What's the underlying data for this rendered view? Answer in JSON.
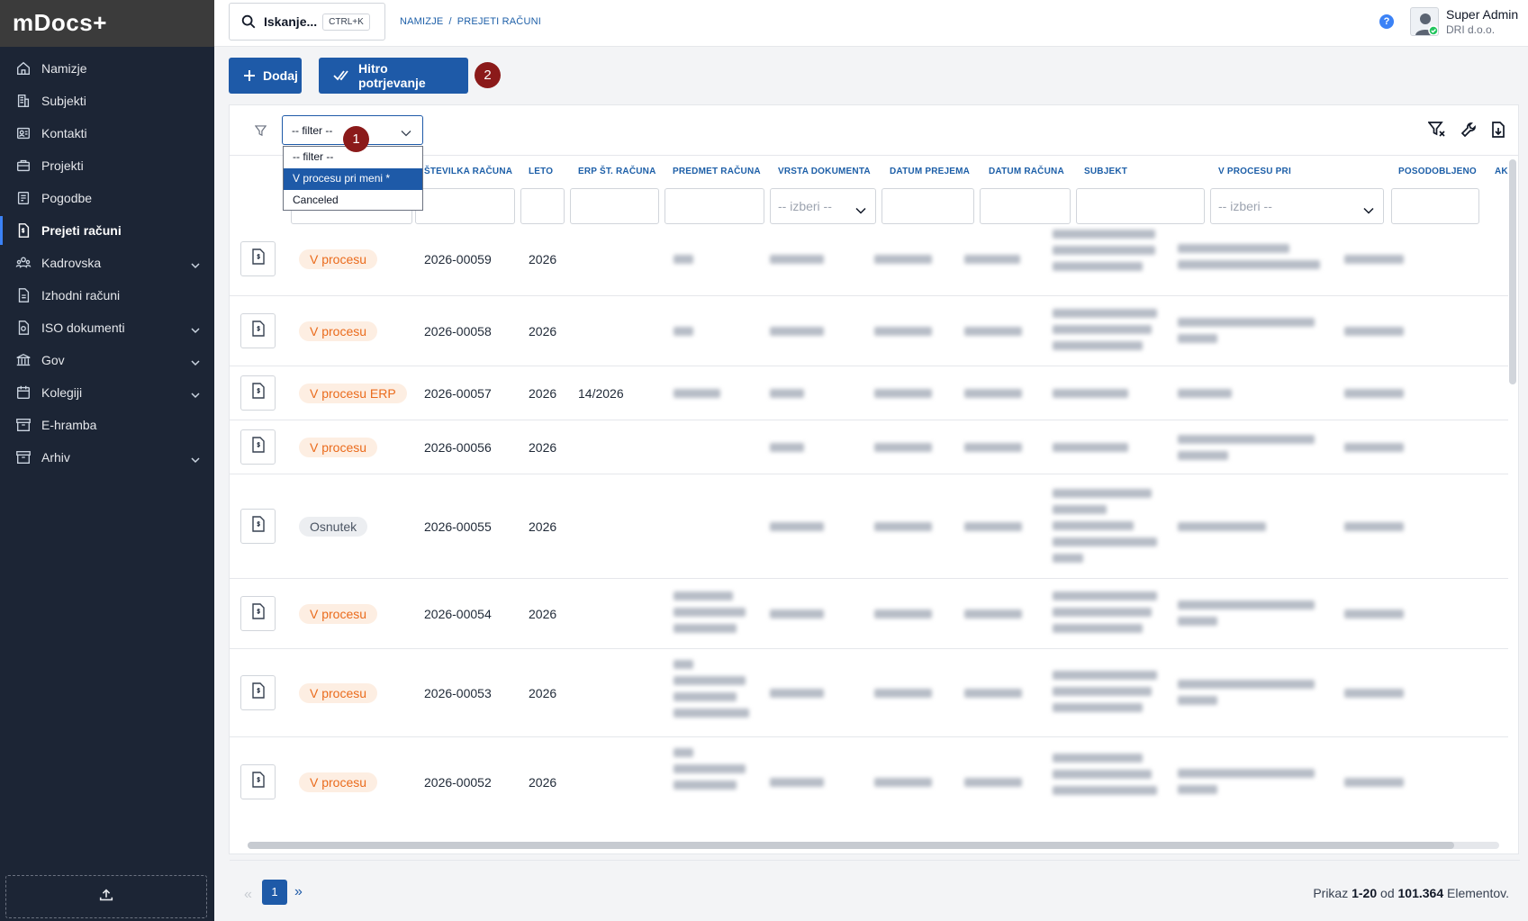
{
  "app": {
    "logo": "mDocs+"
  },
  "sidebar": {
    "items": [
      {
        "label": "Namizje",
        "icon": "home-icon"
      },
      {
        "label": "Subjekti",
        "icon": "building-icon"
      },
      {
        "label": "Kontakti",
        "icon": "contact-card-icon"
      },
      {
        "label": "Projekti",
        "icon": "briefcase-icon"
      },
      {
        "label": "Pogodbe",
        "icon": "contract-icon"
      },
      {
        "label": "Prejeti računi",
        "icon": "invoice-icon",
        "active": true
      },
      {
        "label": "Kadrovska",
        "icon": "people-icon",
        "expandable": true
      },
      {
        "label": "Izhodni računi",
        "icon": "document-icon"
      },
      {
        "label": "ISO dokumenti",
        "icon": "iso-icon",
        "expandable": true
      },
      {
        "label": "Gov",
        "icon": "government-icon",
        "expandable": true
      },
      {
        "label": "Kolegiji",
        "icon": "calendar-icon",
        "expandable": true
      },
      {
        "label": "E-hramba",
        "icon": "archive-icon"
      },
      {
        "label": "Arhiv",
        "icon": "archive-box-icon",
        "expandable": true
      }
    ]
  },
  "header": {
    "search_label": "Iskanje...",
    "search_shortcut": "CTRL+K",
    "breadcrumb": [
      "NAMIZJE",
      "/",
      "PREJETI RAČUNI"
    ],
    "help": "?",
    "user_name": "Super Admin",
    "user_company": "DRI d.o.o."
  },
  "toolbar": {
    "add_label": "Dodaj",
    "quick_label": "Hitro potrjevanje",
    "marker_1": "1",
    "marker_2": "2"
  },
  "filter": {
    "selected": "-- filter --",
    "options": [
      "-- filter --",
      "V procesu pri meni *",
      "Canceled"
    ],
    "highlighted": "V procesu pri meni *"
  },
  "table": {
    "columns": [
      "ŠTEVILKA RAČUNA",
      "LETO",
      "ERP ŠT. RAČUNA",
      "PREDMET RAČUNA",
      "VRSTA DOKUMENTA",
      "DATUM PREJEMA",
      "DATUM RAČUNA",
      "SUBJEKT",
      "V PROCESU PRI",
      "POSODOBLJENO",
      "AK"
    ],
    "select_placeholder": "-- izberi --",
    "rows": [
      {
        "status": "V procesu",
        "tone": "orange",
        "number": "2026-00059",
        "year": "2026",
        "erp": ""
      },
      {
        "status": "V procesu",
        "tone": "orange",
        "number": "2026-00058",
        "year": "2026",
        "erp": ""
      },
      {
        "status": "V procesu ERP",
        "tone": "orange",
        "number": "2026-00057",
        "year": "2026",
        "erp": "14/2026"
      },
      {
        "status": "V procesu",
        "tone": "orange",
        "number": "2026-00056",
        "year": "2026",
        "erp": ""
      },
      {
        "status": "Osnutek",
        "tone": "gray",
        "number": "2026-00055",
        "year": "2026",
        "erp": ""
      },
      {
        "status": "V procesu",
        "tone": "orange",
        "number": "2026-00054",
        "year": "2026",
        "erp": ""
      },
      {
        "status": "V procesu",
        "tone": "orange",
        "number": "2026-00053",
        "year": "2026",
        "erp": ""
      },
      {
        "status": "V procesu",
        "tone": "orange",
        "number": "2026-00052",
        "year": "2026",
        "erp": ""
      }
    ]
  },
  "pagination": {
    "current_page": "1",
    "prefix": "Prikaz",
    "range": "1-20",
    "of_word": "od",
    "total": "101.364",
    "suffix": "Elementov."
  },
  "colors": {
    "primary": "#1e5aa8",
    "sidebar": "#1c2535",
    "status_orange": "#ea6b1c",
    "marker": "#8b1a1a"
  }
}
